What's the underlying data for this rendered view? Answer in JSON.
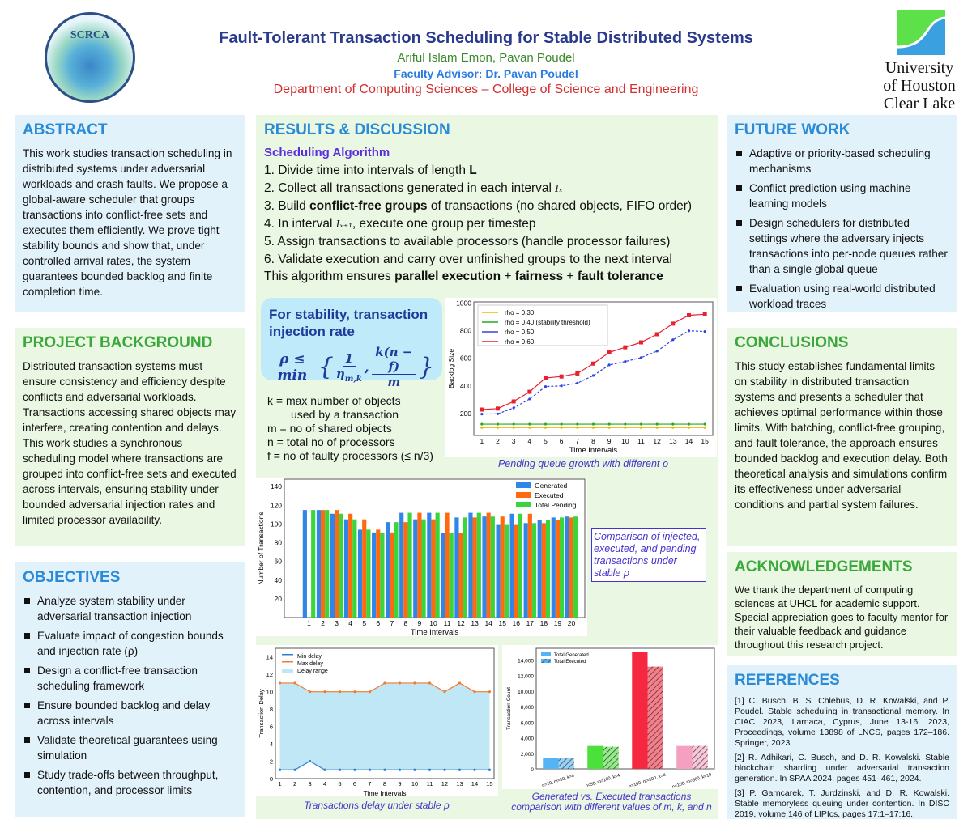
{
  "header": {
    "title": "Fault-Tolerant Transaction Scheduling for Stable Distributed Systems",
    "authors": "Ariful Islam Emon, Pavan Poudel",
    "advisor": "Faculty Advisor: Dr. Pavan Poudel",
    "department": "Department of Computing Sciences – College of Science and Engineering",
    "left_logo": "SCRCA Student Conference for Research & Creative Arts",
    "right_logo": [
      "University",
      "of Houston",
      "Clear Lake"
    ]
  },
  "abstract": {
    "title": "ABSTRACT",
    "text": "This work studies transaction scheduling in distributed systems under adversarial workloads and crash faults. We propose a global-aware scheduler that groups transactions into conflict-free sets and executes them efficiently. We prove tight stability bounds and show that, under controlled arrival rates, the system guarantees bounded backlog and finite completion time."
  },
  "background": {
    "title": "PROJECT BACKGROUND",
    "text": "Distributed transaction systems must ensure consistency and efficiency despite conflicts and adversarial workloads. Transactions accessing shared objects may interfere, creating contention and delays. This work studies a synchronous scheduling model where transactions are grouped into conflict-free sets and executed across intervals, ensuring stability under bounded adversarial injection rates and limited processor availability."
  },
  "objectives": {
    "title": "OBJECTIVES",
    "items": [
      "Analyze system stability under adversarial transaction injection",
      "Evaluate impact of congestion bounds and injection rate (ρ)",
      "Design a conflict-free transaction scheduling framework",
      "Ensure bounded backlog and delay across intervals",
      "Validate theoretical guarantees using simulation",
      "Study trade-offs between throughput, contention, and processor limits"
    ]
  },
  "results": {
    "title": "RESULTS & DISCUSSION",
    "alg_title": "Scheduling Algorithm",
    "steps": [
      [
        "1.  Divide time into intervals of length ",
        "L",
        ""
      ],
      [
        "2.  Collect all transactions generated in each interval ",
        "Iₓ",
        ""
      ],
      [
        "3.  Build ",
        "conflict-free groups",
        " of transactions (no shared objects, FIFO order)"
      ],
      [
        "4.  In interval ",
        "Iₓ₊₁",
        ", execute one group per timestep"
      ],
      [
        "5.  Assign transactions to available processors (handle processor failures)",
        "",
        ""
      ],
      [
        "6.  Validate execution and carry over unfinished groups to the next interval",
        "",
        ""
      ]
    ],
    "summary": [
      "This algorithm ensures ",
      "parallel execution",
      " + ",
      "fairness",
      " + ",
      "fault tolerance"
    ],
    "stability_title": "For stability, transaction injection rate",
    "formula": "ρ ≤ min{ 1/η_m,k , k(n − f)/m }",
    "defs": [
      "k =  max number of objects",
      "used by a transaction",
      "m = no of shared objects",
      "n  = total no of processors",
      "f   = no of faulty processors (≤ n/3)"
    ],
    "bar_caption": "Comparison of injected, executed, and pending transactions under stable ρ"
  },
  "future": {
    "title": "FUTURE WORK",
    "items": [
      "Adaptive or priority-based scheduling mechanisms",
      "Conflict prediction using machine learning models",
      "Design schedulers for distributed settings where the adversary injects transactions into per-node queues rather than a single global queue",
      "Evaluation using real-world distributed workload traces"
    ]
  },
  "conclusions": {
    "title": "CONCLUSIONS",
    "text": "This study establishes fundamental limits on stability in distributed transaction systems and presents a scheduler that achieves optimal performance within those limits. With batching, conflict-free grouping, and fault tolerance, the approach ensures bounded backlog and execution delay. Both theoretical analysis and simulations confirm its effectiveness under adversarial conditions and partial system failures."
  },
  "ack": {
    "title": "ACKNOWLEDGEMENTS",
    "text": "We thank the department of computing sciences at UHCL for academic support. Special appreciation goes to faculty mentor for their valuable feedback and guidance throughout this research project."
  },
  "references": {
    "title": "REFERENCES",
    "items": [
      "[1] C. Busch, B. S. Chlebus, D. R. Kowalski, and P. Poudel. Stable scheduling in transactional memory. In CIAC 2023, Larnaca, Cyprus, June 13-16, 2023, Proceedings, volume 13898 of LNCS, pages 172–186. Springer, 2023.",
      "[2] R. Adhikari, C. Busch, and D. R. Kowalski. Stable blockchain sharding under adversarial transaction generation. In SPAA 2024, pages 451–461, 2024.",
      "[3] P. Garncarek, T. Jurdzinski, and D. R. Kowalski. Stable memoryless queuing under contention. In DISC 2019, volume 146 of LIPIcs, pages 17:1–17:16."
    ]
  },
  "chart_data": [
    {
      "type": "line",
      "caption": "Pending queue growth with different ρ",
      "xlabel": "Time Intervals",
      "ylabel": "Backlog Size",
      "xlim": [
        0.5,
        15.5
      ],
      "ylim": [
        40,
        1010
      ],
      "yticks": [
        200,
        400,
        600,
        800,
        1000
      ],
      "x": [
        1,
        2,
        3,
        4,
        5,
        6,
        7,
        8,
        9,
        10,
        11,
        12,
        13,
        14,
        15
      ],
      "legend": "top-left",
      "series": [
        {
          "name": "rho = 0.30",
          "color": "#f5b400",
          "values": [
            97,
            97,
            97,
            97,
            97,
            97,
            97,
            97,
            97,
            97,
            97,
            97,
            97,
            97,
            97
          ]
        },
        {
          "name": "rho = 0.40 (stability threshold)",
          "color": "#22aa22",
          "values": [
            122,
            122,
            122,
            122,
            122,
            122,
            122,
            122,
            122,
            122,
            122,
            122,
            122,
            122,
            122
          ]
        },
        {
          "name": "rho = 0.50",
          "color": "#3344dd",
          "dashed": true,
          "values": [
            195,
            197,
            240,
            305,
            395,
            400,
            420,
            475,
            552,
            577,
            605,
            652,
            735,
            800,
            795
          ]
        },
        {
          "name": "rho = 0.60",
          "color": "#e82030",
          "values": [
            228,
            235,
            287,
            357,
            457,
            468,
            490,
            562,
            643,
            680,
            716,
            775,
            852,
            913,
            920
          ]
        }
      ]
    },
    {
      "type": "bar",
      "xlabel": "Time Intervals",
      "ylabel": "Number of Transactions",
      "ylim": [
        0,
        148
      ],
      "yticks": [
        20,
        40,
        60,
        80,
        100,
        120,
        140
      ],
      "categories": [
        "1",
        "2",
        "3",
        "4",
        "5",
        "6",
        "7",
        "8",
        "9",
        "10",
        "11",
        "12",
        "13",
        "14",
        "15",
        "16",
        "17",
        "18",
        "19",
        "20"
      ],
      "legend": "top-right",
      "series": [
        {
          "name": "Generated",
          "color": "#2f86e8",
          "values": [
            115,
            115,
            111,
            105,
            94,
            91,
            102,
            112,
            105,
            112,
            90,
            107,
            112,
            108,
            99,
            111,
            101,
            104,
            107,
            108
          ]
        },
        {
          "name": "Executed",
          "color": "#ff6a10",
          "values": [
            0,
            115,
            115,
            111,
            105,
            94,
            91,
            102,
            112,
            105,
            112,
            90,
            107,
            112,
            108,
            99,
            111,
            101,
            104,
            107
          ]
        },
        {
          "name": "Total Pending",
          "color": "#3ad53a",
          "values": [
            115,
            115,
            111,
            105,
            94,
            91,
            102,
            112,
            105,
            112,
            90,
            107,
            112,
            108,
            99,
            111,
            101,
            104,
            107,
            108
          ]
        }
      ]
    },
    {
      "type": "area",
      "caption": "Transactions delay under stable ρ",
      "xlabel": "Time Intervals",
      "ylabel": "Transaction Delay",
      "xlim": [
        0.7,
        15.3
      ],
      "ylim": [
        0,
        15
      ],
      "yticks": [
        0,
        2,
        4,
        6,
        8,
        10,
        12,
        14
      ],
      "x": [
        1,
        2,
        3,
        4,
        5,
        6,
        7,
        8,
        9,
        10,
        11,
        12,
        13,
        14,
        15
      ],
      "legend": "top-left",
      "series": [
        {
          "name": "Min delay",
          "color": "#2f7fd0",
          "values": [
            1,
            1,
            2,
            1,
            1,
            1,
            1,
            1,
            1,
            1,
            1,
            1,
            1,
            1,
            1
          ]
        },
        {
          "name": "Max delay",
          "color": "#f07a30",
          "values": [
            11,
            11,
            10,
            10,
            10,
            10,
            10,
            11,
            11,
            11,
            11,
            10,
            11,
            10,
            10
          ]
        }
      ],
      "fill_name": "Delay range",
      "fill_color": "#bfe7f5"
    },
    {
      "type": "bar",
      "caption": "Generated vs. Executed transactions comparison with different values of m, k, and n",
      "ylabel": "Transaction Count",
      "ylim": [
        0,
        15500
      ],
      "yticks": [
        0,
        2000,
        4000,
        6000,
        8000,
        10000,
        12000,
        14000
      ],
      "categories": [
        "n=20, m=50, k=4",
        "n=50, m=100, k=4",
        "n=100, m=500, k=4",
        "n=100, m=500, k=10"
      ],
      "colors": [
        "#55b4f5",
        "#4be03a",
        "#f52840",
        "#f5a0c0"
      ],
      "legend": "top-left",
      "series": [
        {
          "name": "Total Generated",
          "values": [
            1450,
            2950,
            15000,
            2950
          ]
        },
        {
          "name": "Total Executed",
          "hatched": true,
          "values": [
            1380,
            2850,
            13150,
            2950
          ]
        }
      ]
    }
  ]
}
